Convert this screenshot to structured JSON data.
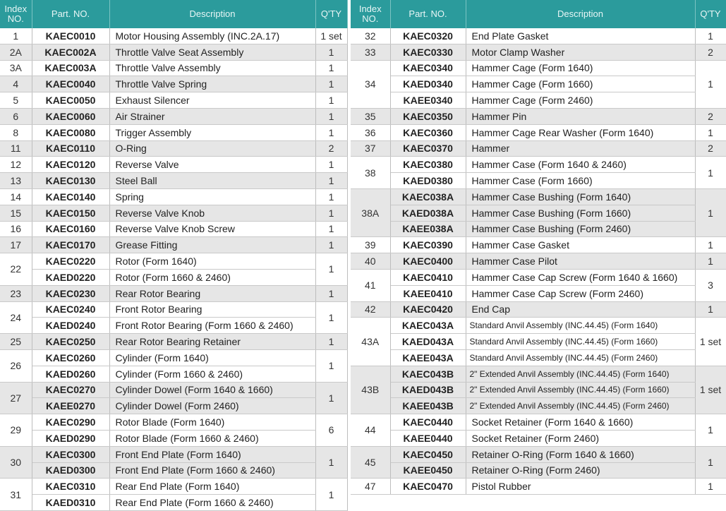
{
  "headers": {
    "index": "Index NO.",
    "part": "Part. NO.",
    "desc": "Description",
    "qty": "Q'TY"
  },
  "left": [
    {
      "index": "1",
      "qty": "1 set",
      "items": [
        {
          "part": "KAEC0010",
          "desc": "Motor Housing Assembly (INC.2A.17)"
        }
      ]
    },
    {
      "index": "2A",
      "qty": "1",
      "items": [
        {
          "part": "KAEC002A",
          "desc": "Throttle Valve Seat Assembly"
        }
      ]
    },
    {
      "index": "3A",
      "qty": "1",
      "items": [
        {
          "part": "KAEC003A",
          "desc": "Throttle Valve Assembly"
        }
      ]
    },
    {
      "index": "4",
      "qty": "1",
      "items": [
        {
          "part": "KAEC0040",
          "desc": "Throttle Valve Spring"
        }
      ]
    },
    {
      "index": "5",
      "qty": "1",
      "items": [
        {
          "part": "KAEC0050",
          "desc": "Exhaust Silencer"
        }
      ]
    },
    {
      "index": "6",
      "qty": "1",
      "items": [
        {
          "part": "KAEC0060",
          "desc": "Air Strainer"
        }
      ]
    },
    {
      "index": "8",
      "qty": "1",
      "items": [
        {
          "part": "KAEC0080",
          "desc": "Trigger Assembly"
        }
      ]
    },
    {
      "index": "11",
      "qty": "2",
      "items": [
        {
          "part": "KAEC0110",
          "desc": "O-Ring"
        }
      ]
    },
    {
      "index": "12",
      "qty": "1",
      "items": [
        {
          "part": "KAEC0120",
          "desc": "Reverse Valve"
        }
      ]
    },
    {
      "index": "13",
      "qty": "1",
      "items": [
        {
          "part": "KAEC0130",
          "desc": "Steel Ball"
        }
      ]
    },
    {
      "index": "14",
      "qty": "1",
      "items": [
        {
          "part": "KAEC0140",
          "desc": "Spring"
        }
      ]
    },
    {
      "index": "15",
      "qty": "1",
      "items": [
        {
          "part": "KAEC0150",
          "desc": "Reverse Valve Knob"
        }
      ]
    },
    {
      "index": "16",
      "qty": "1",
      "items": [
        {
          "part": "KAEC0160",
          "desc": "Reverse Valve Knob Screw"
        }
      ]
    },
    {
      "index": "17",
      "qty": "1",
      "items": [
        {
          "part": "KAEC0170",
          "desc": "Grease Fitting"
        }
      ]
    },
    {
      "index": "22",
      "qty": "1",
      "items": [
        {
          "part": "KAEC0220",
          "desc": "Rotor (Form 1640)"
        },
        {
          "part": "KAED0220",
          "desc": "Rotor (Form 1660 & 2460)"
        }
      ]
    },
    {
      "index": "23",
      "qty": "1",
      "items": [
        {
          "part": "KAEC0230",
          "desc": "Rear Rotor Bearing"
        }
      ]
    },
    {
      "index": "24",
      "qty": "1",
      "items": [
        {
          "part": "KAEC0240",
          "desc": "Front Rotor Bearing"
        },
        {
          "part": "KAED0240",
          "desc": "Front Rotor Bearing (Form 1660 & 2460)"
        }
      ]
    },
    {
      "index": "25",
      "qty": "1",
      "items": [
        {
          "part": "KAEC0250",
          "desc": "Rear Rotor Bearing Retainer"
        }
      ]
    },
    {
      "index": "26",
      "qty": "1",
      "items": [
        {
          "part": "KAEC0260",
          "desc": "Cylinder (Form 1640)"
        },
        {
          "part": "KAED0260",
          "desc": "Cylinder (Form 1660 & 2460)"
        }
      ]
    },
    {
      "index": "27",
      "qty": "1",
      "items": [
        {
          "part": "KAEC0270",
          "desc": "Cylinder Dowel (Form 1640 & 1660)"
        },
        {
          "part": "KAEE0270",
          "desc": "Cylinder Dowel (Form 2460)"
        }
      ]
    },
    {
      "index": "29",
      "qty": "6",
      "items": [
        {
          "part": "KAEC0290",
          "desc": "Rotor Blade (Form 1640)"
        },
        {
          "part": "KAED0290",
          "desc": "Rotor Blade (Form 1660 & 2460)"
        }
      ]
    },
    {
      "index": "30",
      "qty": "1",
      "items": [
        {
          "part": "KAEC0300",
          "desc": "Front End Plate (Form 1640)"
        },
        {
          "part": "KAED0300",
          "desc": "Front End Plate (Form 1660 & 2460)"
        }
      ]
    },
    {
      "index": "31",
      "qty": "1",
      "items": [
        {
          "part": "KAEC0310",
          "desc": "Rear End Plate (Form 1640)"
        },
        {
          "part": "KAED0310",
          "desc": "Rear End Plate (Form 1660 & 2460)"
        }
      ]
    }
  ],
  "right": [
    {
      "index": "32",
      "qty": "1",
      "items": [
        {
          "part": "KAEC0320",
          "desc": "End Plate Gasket"
        }
      ]
    },
    {
      "index": "33",
      "qty": "2",
      "items": [
        {
          "part": "KAEC0330",
          "desc": "Motor Clamp Washer"
        }
      ]
    },
    {
      "index": "34",
      "qty": "1",
      "items": [
        {
          "part": "KAEC0340",
          "desc": "Hammer Cage (Form 1640)"
        },
        {
          "part": "KAED0340",
          "desc": "Hammer Cage (Form 1660)"
        },
        {
          "part": "KAEE0340",
          "desc": "Hammer Cage (Form 2460)"
        }
      ]
    },
    {
      "index": "35",
      "qty": "2",
      "items": [
        {
          "part": "KAEC0350",
          "desc": "Hammer Pin"
        }
      ]
    },
    {
      "index": "36",
      "qty": "1",
      "items": [
        {
          "part": "KAEC0360",
          "desc": "Hammer Cage Rear Washer (Form 1640)"
        }
      ]
    },
    {
      "index": "37",
      "qty": "2",
      "items": [
        {
          "part": "KAEC0370",
          "desc": "Hammer"
        }
      ]
    },
    {
      "index": "38",
      "qty": "1",
      "items": [
        {
          "part": "KAEC0380",
          "desc": "Hammer Case (Form 1640 & 2460)"
        },
        {
          "part": "KAED0380",
          "desc": "Hammer Case (Form 1660)"
        }
      ]
    },
    {
      "index": "38A",
      "qty": "1",
      "items": [
        {
          "part": "KAEC038A",
          "desc": "Hammer Case Bushing (Form 1640)"
        },
        {
          "part": "KAED038A",
          "desc": "Hammer Case Bushing (Form 1660)"
        },
        {
          "part": "KAEE038A",
          "desc": "Hammer Case Bushing (Form 2460)"
        }
      ]
    },
    {
      "index": "39",
      "qty": "1",
      "items": [
        {
          "part": "KAEC0390",
          "desc": "Hammer Case Gasket"
        }
      ]
    },
    {
      "index": "40",
      "qty": "1",
      "items": [
        {
          "part": "KAEC0400",
          "desc": "Hammer Case Pilot"
        }
      ]
    },
    {
      "index": "41",
      "qty": "3",
      "items": [
        {
          "part": "KAEC0410",
          "desc": "Hammer Case Cap Screw (Form 1640 & 1660)"
        },
        {
          "part": "KAEE0410",
          "desc": "Hammer Case Cap Screw (Form 2460)"
        }
      ]
    },
    {
      "index": "42",
      "qty": "1",
      "items": [
        {
          "part": "KAEC0420",
          "desc": "End Cap"
        }
      ]
    },
    {
      "index": "43A",
      "qty": "1 set",
      "small": true,
      "items": [
        {
          "part": "KAEC043A",
          "desc": "Standard Anvil Assembly (INC.44.45) (Form 1640)"
        },
        {
          "part": "KAED043A",
          "desc": "Standard Anvil Assembly (INC.44.45) (Form 1660)"
        },
        {
          "part": "KAEE043A",
          "desc": "Standard Anvil Assembly (INC.44.45) (Form 2460)"
        }
      ]
    },
    {
      "index": "43B",
      "qty": "1 set",
      "small": true,
      "items": [
        {
          "part": "KAEC043B",
          "desc": "2\" Extended Anvil Assembly (INC.44.45) (Form 1640)"
        },
        {
          "part": "KAED043B",
          "desc": "2\" Extended Anvil Assembly (INC.44.45) (Form 1660)"
        },
        {
          "part": "KAEE043B",
          "desc": "2\" Extended Anvil Assembly (INC.44.45) (Form 2460)"
        }
      ]
    },
    {
      "index": "44",
      "qty": "1",
      "items": [
        {
          "part": "KAEC0440",
          "desc": "Socket Retainer (Form 1640 & 1660)"
        },
        {
          "part": "KAEE0440",
          "desc": "Socket Retainer (Form 2460)"
        }
      ]
    },
    {
      "index": "45",
      "qty": "1",
      "items": [
        {
          "part": "KAEC0450",
          "desc": "Retainer O-Ring (Form 1640 & 1660)"
        },
        {
          "part": "KAEE0450",
          "desc": "Retainer O-Ring (Form 2460)"
        }
      ]
    },
    {
      "index": "47",
      "qty": "1",
      "items": [
        {
          "part": "KAEC0470",
          "desc": "Pistol Rubber"
        }
      ]
    }
  ]
}
